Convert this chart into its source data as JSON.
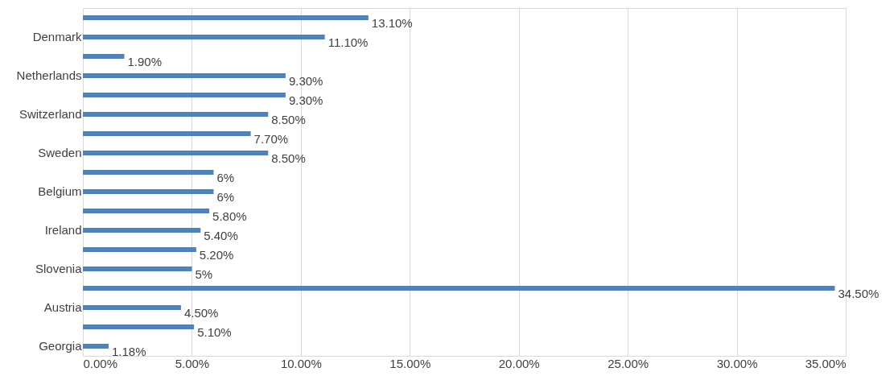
{
  "chart_data": {
    "type": "bar",
    "orientation": "horizontal",
    "categories": [
      null,
      "Denmark",
      null,
      "Netherlands",
      null,
      "Switzerland",
      null,
      "Sweden",
      null,
      "Belgium",
      null,
      "Ireland",
      null,
      "Slovenia",
      null,
      "Austria",
      null,
      "Georgia"
    ],
    "values": [
      13.1,
      11.1,
      1.9,
      9.3,
      9.3,
      8.5,
      7.7,
      8.5,
      6,
      6,
      5.8,
      5.4,
      5.2,
      5,
      34.5,
      4.5,
      5.1,
      1.18
    ],
    "value_labels": [
      "13.10%",
      "11.10%",
      "1.90%",
      "9.30%",
      "9.30%",
      "8.50%",
      "7.70%",
      "8.50%",
      "6%",
      "6%",
      "5.80%",
      "5.40%",
      "5.20%",
      "5%",
      "34.50%",
      "4.50%",
      "5.10%",
      "1.18%"
    ],
    "color": "#4f81bd",
    "xlim": [
      0,
      35
    ],
    "xticks": [
      {
        "value": 0,
        "label": "0.00%"
      },
      {
        "value": 5,
        "label": "5.00%"
      },
      {
        "value": 10,
        "label": "10.00%"
      },
      {
        "value": 15,
        "label": "15.00%"
      },
      {
        "value": 20,
        "label": "20.00%"
      },
      {
        "value": 25,
        "label": "25.00%"
      },
      {
        "value": 30,
        "label": "30.00%"
      },
      {
        "value": 35,
        "label": "35.00%"
      }
    ],
    "grid": "x"
  }
}
